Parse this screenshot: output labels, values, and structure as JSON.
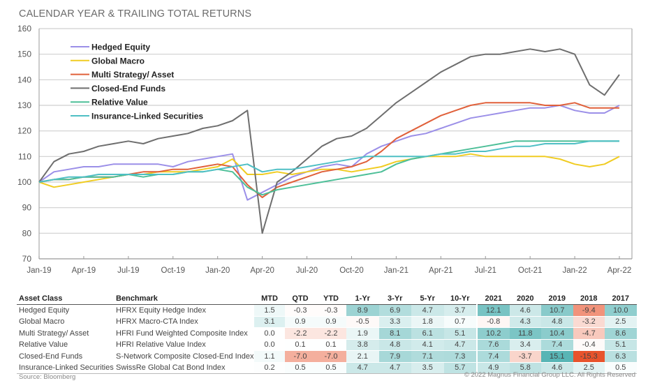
{
  "title": "CALENDAR YEAR & TRAILING TOTAL RETURNS",
  "chart_data": {
    "type": "line",
    "title": "CALENDAR YEAR & TRAILING TOTAL RETURNS",
    "xlabel": "",
    "ylabel": "",
    "ylim": [
      70,
      160
    ],
    "yticks": [
      "160",
      "150",
      "140",
      "130",
      "120",
      "110",
      "100",
      "90",
      "80",
      "70"
    ],
    "xticks": [
      "Jan-19",
      "Apr-19",
      "Jul-19",
      "Oct-19",
      "Jan-20",
      "Apr-20",
      "Jul-20",
      "Oct-20",
      "Jan-21",
      "Apr-21",
      "Jul-21",
      "Oct-21",
      "Jan-22",
      "Apr-22"
    ],
    "grid": true,
    "legend_position": "top-left",
    "x": [
      "Jan-19",
      "Feb-19",
      "Mar-19",
      "Apr-19",
      "May-19",
      "Jun-19",
      "Jul-19",
      "Aug-19",
      "Sep-19",
      "Oct-19",
      "Nov-19",
      "Dec-19",
      "Jan-20",
      "Feb-20",
      "Mar-20",
      "Apr-20",
      "May-20",
      "Jun-20",
      "Jul-20",
      "Aug-20",
      "Sep-20",
      "Oct-20",
      "Nov-20",
      "Dec-20",
      "Jan-21",
      "Feb-21",
      "Mar-21",
      "Apr-21",
      "May-21",
      "Jun-21",
      "Jul-21",
      "Aug-21",
      "Sep-21",
      "Oct-21",
      "Nov-21",
      "Dec-21",
      "Jan-22",
      "Feb-22",
      "Mar-22",
      "Apr-22"
    ],
    "series": [
      {
        "name": "Hedged Equity",
        "color": "#9b8fe8",
        "values": [
          100,
          104,
          105,
          106,
          106,
          107,
          107,
          107,
          107,
          106,
          108,
          109,
          110,
          111,
          93,
          96,
          99,
          102,
          104,
          106,
          107,
          106,
          111,
          114,
          116,
          118,
          119,
          121,
          123,
          125,
          126,
          127,
          128,
          129,
          129,
          130,
          128,
          127,
          127,
          130
        ]
      },
      {
        "name": "Global  Macro",
        "color": "#f0cc22",
        "values": [
          100,
          98,
          99,
          100,
          101,
          102,
          103,
          103,
          104,
          104,
          104,
          105,
          106,
          109,
          103,
          103,
          104,
          103,
          104,
          105,
          105,
          104,
          105,
          106,
          108,
          109,
          110,
          110,
          110,
          111,
          110,
          110,
          110,
          110,
          110,
          109,
          107,
          106,
          107,
          110
        ]
      },
      {
        "name": "Multi Strategy/ Asset",
        "color": "#e0603a",
        "values": [
          100,
          101,
          101,
          102,
          102,
          102,
          103,
          104,
          104,
          105,
          105,
          106,
          107,
          106,
          99,
          94,
          98,
          100,
          102,
          104,
          105,
          106,
          108,
          112,
          117,
          120,
          123,
          126,
          128,
          130,
          131,
          131,
          131,
          131,
          130,
          130,
          131,
          129,
          129,
          129
        ]
      },
      {
        "name": "Closed-End Funds",
        "color": "#6e6e6e",
        "values": [
          100,
          108,
          111,
          112,
          114,
          115,
          116,
          115,
          117,
          118,
          119,
          121,
          122,
          124,
          128,
          80,
          100,
          104,
          109,
          114,
          117,
          118,
          121,
          126,
          131,
          135,
          139,
          143,
          146,
          149,
          150,
          150,
          151,
          152,
          151,
          152,
          150,
          138,
          134,
          142
        ]
      },
      {
        "name": "Relative Value",
        "color": "#4dbf98",
        "values": [
          100,
          101,
          101,
          102,
          102,
          102,
          103,
          102,
          103,
          103,
          104,
          104,
          105,
          104,
          98,
          95,
          97,
          98,
          99,
          100,
          101,
          102,
          103,
          104,
          107,
          109,
          110,
          111,
          112,
          113,
          114,
          115,
          116,
          116,
          116,
          116,
          116,
          116,
          116,
          116
        ]
      },
      {
        "name": "Insurance-Linked Securities",
        "color": "#4ebfc4",
        "values": [
          100,
          101,
          102,
          102,
          103,
          103,
          103,
          103,
          103,
          103,
          104,
          104,
          105,
          106,
          107,
          104,
          105,
          105,
          106,
          107,
          108,
          109,
          110,
          110,
          110,
          110,
          110,
          111,
          111,
          112,
          112,
          113,
          114,
          114,
          115,
          115,
          115,
          116,
          116,
          116
        ]
      }
    ]
  },
  "table": {
    "headers": {
      "asset_class": "Asset Class",
      "benchmark": "Benchmark",
      "trailing": [
        "MTD",
        "QTD",
        "YTD",
        "1-Yr",
        "3-Yr",
        "5-Yr",
        "10-Yr"
      ],
      "calendar": [
        "2021",
        "2020",
        "2019",
        "2018",
        "2017"
      ]
    },
    "rows": [
      {
        "asset_class": "Hedged Equity",
        "benchmark": "HFRX Equity Hedge Index",
        "trailing": [
          "1.5",
          "-0.3",
          "-0.3",
          "8.9",
          "6.9",
          "4.7",
          "3.7"
        ],
        "calendar": [
          "12.1",
          "4.6",
          "10.7",
          "-9.4",
          "10.0"
        ]
      },
      {
        "asset_class": "Global  Macro",
        "benchmark": "HFRX Macro-CTA Index",
        "trailing": [
          "3.1",
          "0.9",
          "0.9",
          "-0.5",
          "3.3",
          "1.8",
          "0.7"
        ],
        "calendar": [
          "-0.8",
          "4.3",
          "4.8",
          "-3.2",
          "2.5"
        ]
      },
      {
        "asset_class": "Multi Strategy/ Asset",
        "benchmark": "HFRI Fund Weighted Composite Index",
        "trailing": [
          "0.0",
          "-2.2",
          "-2.2",
          "1.9",
          "8.1",
          "6.1",
          "5.1"
        ],
        "calendar": [
          "10.2",
          "11.8",
          "10.4",
          "-4.7",
          "8.6"
        ]
      },
      {
        "asset_class": "Relative Value",
        "benchmark": "HFRI Relative Value Index",
        "trailing": [
          "0.0",
          "0.1",
          "0.1",
          "3.8",
          "4.8",
          "4.1",
          "4.7"
        ],
        "calendar": [
          "7.6",
          "3.4",
          "7.4",
          "-0.4",
          "5.1"
        ]
      },
      {
        "asset_class": "Closed-End Funds",
        "benchmark": "S-Network Composite Closed-End Index",
        "trailing": [
          "1.1",
          "-7.0",
          "-7.0",
          "2.1",
          "7.9",
          "7.1",
          "7.3"
        ],
        "calendar": [
          "7.4",
          "-3.7",
          "15.1",
          "-15.3",
          "6.3"
        ]
      },
      {
        "asset_class": "Insurance-Linked Securities",
        "benchmark": "SwissRe Global Cat Bond Index",
        "trailing": [
          "0.2",
          "0.5",
          "0.5",
          "4.7",
          "4.7",
          "3.5",
          "5.7"
        ],
        "calendar": [
          "4.9",
          "5.8",
          "4.6",
          "2.5",
          "0.5"
        ]
      }
    ]
  },
  "colors": {
    "positive": "#3aa8a8",
    "negative": "#e8532c",
    "neutral": "#ffffff"
  },
  "footer": {
    "source": "Source: Bloomberg",
    "copyright": "© 2022 Magnus Financial Group LLC. All Rights Reserved"
  }
}
